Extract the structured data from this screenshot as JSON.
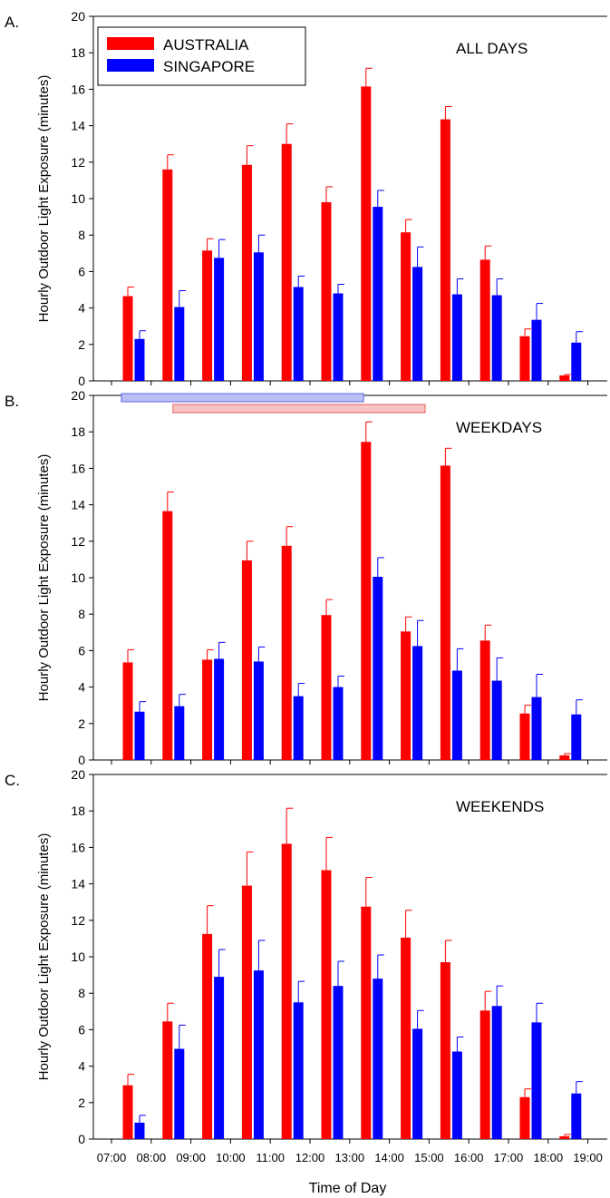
{
  "chart_data": [
    {
      "type": "bar",
      "panel_letter": "A.",
      "panel_label": "ALL DAYS",
      "ylabel": "Hourly Outdoor Light Exposure (minutes)",
      "ylim": [
        0,
        20
      ],
      "yticks": [
        "0",
        "2",
        "4",
        "6",
        "8",
        "10",
        "12",
        "14",
        "16",
        "18",
        "20"
      ],
      "categories": [
        "07:00",
        "08:00",
        "09:00",
        "10:00",
        "11:00",
        "12:00",
        "13:00",
        "14:00",
        "15:00",
        "16:00",
        "17:00",
        "18:00"
      ],
      "series": [
        {
          "name": "AUSTRALIA",
          "color": "#ff0000",
          "values": [
            4.65,
            11.6,
            7.15,
            11.85,
            13.0,
            9.8,
            16.15,
            8.15,
            14.35,
            6.65,
            2.45,
            0.3
          ],
          "errors": [
            0.5,
            0.8,
            0.65,
            1.05,
            1.1,
            0.85,
            1.0,
            0.7,
            0.7,
            0.75,
            0.4,
            0.05
          ]
        },
        {
          "name": "SINGAPORE",
          "color": "#0000ff",
          "values": [
            2.3,
            4.05,
            6.75,
            7.05,
            5.15,
            4.8,
            9.55,
            6.25,
            4.75,
            4.7,
            3.35,
            2.1
          ],
          "errors": [
            0.45,
            0.9,
            1.0,
            0.95,
            0.6,
            0.5,
            0.9,
            1.1,
            0.85,
            0.9,
            0.9,
            0.6
          ]
        }
      ],
      "legend_position": "top-left",
      "grid": false
    },
    {
      "type": "bar",
      "panel_letter": "B.",
      "panel_label": "WEEKDAYS",
      "ylabel": "Hourly Outdoor Light Exposure (minutes)",
      "ylim": [
        0,
        20
      ],
      "yticks": [
        "0",
        "2",
        "4",
        "6",
        "8",
        "10",
        "12",
        "14",
        "16",
        "18",
        "20"
      ],
      "categories": [
        "07:00",
        "08:00",
        "09:00",
        "10:00",
        "11:00",
        "12:00",
        "13:00",
        "14:00",
        "15:00",
        "16:00",
        "17:00",
        "18:00"
      ],
      "series": [
        {
          "name": "AUSTRALIA",
          "color": "#ff0000",
          "values": [
            5.35,
            13.65,
            5.5,
            10.95,
            11.75,
            7.95,
            17.45,
            7.05,
            16.15,
            6.55,
            2.55,
            0.25
          ],
          "errors": [
            0.7,
            1.05,
            0.55,
            1.05,
            1.05,
            0.85,
            1.1,
            0.8,
            0.95,
            0.85,
            0.45,
            0.1
          ]
        },
        {
          "name": "SINGAPORE",
          "color": "#0000ff",
          "values": [
            2.65,
            2.95,
            5.55,
            5.4,
            3.5,
            4.0,
            10.05,
            6.25,
            4.9,
            4.35,
            3.45,
            2.5
          ],
          "errors": [
            0.55,
            0.65,
            0.9,
            0.8,
            0.7,
            0.6,
            1.05,
            1.4,
            1.2,
            1.25,
            1.25,
            0.8
          ]
        }
      ],
      "range_bars": [
        {
          "color": "#b8c0f8",
          "stroke": "#5b63e0",
          "start": 7.25,
          "end": 13.35
        },
        {
          "color": "#f8c4c4",
          "stroke": "#e05b5b",
          "start": 8.55,
          "end": 14.9
        }
      ],
      "grid": false
    },
    {
      "type": "bar",
      "panel_letter": "C.",
      "panel_label": "WEEKENDS",
      "ylabel": "Hourly Outdoor Light Exposure (minutes)",
      "xlabel": "Time of Day",
      "ylim": [
        0,
        20
      ],
      "yticks": [
        "0",
        "2",
        "4",
        "6",
        "8",
        "10",
        "12",
        "14",
        "16",
        "18",
        "20"
      ],
      "categories": [
        "07:00",
        "08:00",
        "09:00",
        "10:00",
        "11:00",
        "12:00",
        "13:00",
        "14:00",
        "15:00",
        "16:00",
        "17:00",
        "18:00"
      ],
      "xticklabels": [
        "07:00",
        "08:00",
        "09:00",
        "10:00",
        "11:00",
        "12:00",
        "13:00",
        "14:00",
        "15:00",
        "16:00",
        "17:00",
        "18:00",
        "19:00"
      ],
      "series": [
        {
          "name": "AUSTRALIA",
          "color": "#ff0000",
          "values": [
            2.95,
            6.45,
            11.25,
            13.9,
            16.2,
            14.75,
            12.75,
            11.05,
            9.7,
            7.05,
            2.3,
            0.15
          ],
          "errors": [
            0.6,
            1.0,
            1.55,
            1.85,
            1.95,
            1.8,
            1.6,
            1.5,
            1.2,
            1.05,
            0.45,
            0.1
          ]
        },
        {
          "name": "SINGAPORE",
          "color": "#0000ff",
          "values": [
            0.9,
            4.95,
            8.9,
            9.25,
            7.5,
            8.4,
            8.8,
            6.05,
            4.8,
            7.3,
            6.4,
            2.5
          ],
          "errors": [
            0.4,
            1.3,
            1.5,
            1.65,
            1.15,
            1.35,
            1.3,
            1.0,
            0.8,
            1.1,
            1.05,
            0.65
          ]
        }
      ],
      "grid": false
    }
  ]
}
